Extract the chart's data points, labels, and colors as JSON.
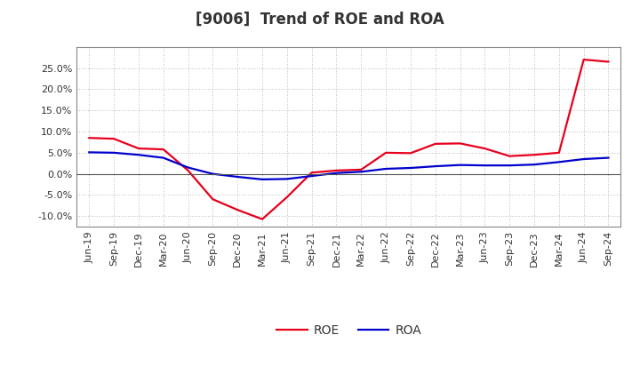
{
  "title": "[9006]  Trend of ROE and ROA",
  "x_labels": [
    "Jun-19",
    "Sep-19",
    "Dec-19",
    "Mar-20",
    "Jun-20",
    "Sep-20",
    "Dec-20",
    "Mar-21",
    "Jun-21",
    "Sep-21",
    "Dec-21",
    "Mar-22",
    "Jun-22",
    "Sep-22",
    "Dec-22",
    "Mar-23",
    "Jun-23",
    "Sep-23",
    "Dec-23",
    "Mar-24",
    "Jun-24",
    "Sep-24"
  ],
  "roe": [
    8.5,
    8.3,
    6.0,
    5.8,
    0.8,
    -6.0,
    -8.5,
    -10.7,
    -5.5,
    0.3,
    0.8,
    1.0,
    5.0,
    4.9,
    7.1,
    7.2,
    6.0,
    4.2,
    4.5,
    5.0,
    27.0,
    26.5
  ],
  "roa": [
    5.1,
    5.0,
    4.5,
    3.8,
    1.5,
    0.0,
    -0.7,
    -1.3,
    -1.2,
    -0.5,
    0.2,
    0.5,
    1.2,
    1.4,
    1.8,
    2.1,
    2.0,
    2.0,
    2.2,
    2.8,
    3.5,
    3.8
  ],
  "roe_color": "#e8001c",
  "roa_color": "#0000cc",
  "background_color": "#ffffff",
  "plot_bg_color": "#ffffff",
  "grid_color": "#aaaaaa",
  "title_color": "#333333",
  "ylim": [
    -12.5,
    30.0
  ],
  "yticks": [
    -10.0,
    -5.0,
    0.0,
    5.0,
    10.0,
    15.0,
    20.0,
    25.0
  ],
  "legend_labels": [
    "ROE",
    "ROA"
  ],
  "title_fontsize": 12,
  "axis_fontsize": 8,
  "legend_fontsize": 10,
  "linewidth": 1.6
}
